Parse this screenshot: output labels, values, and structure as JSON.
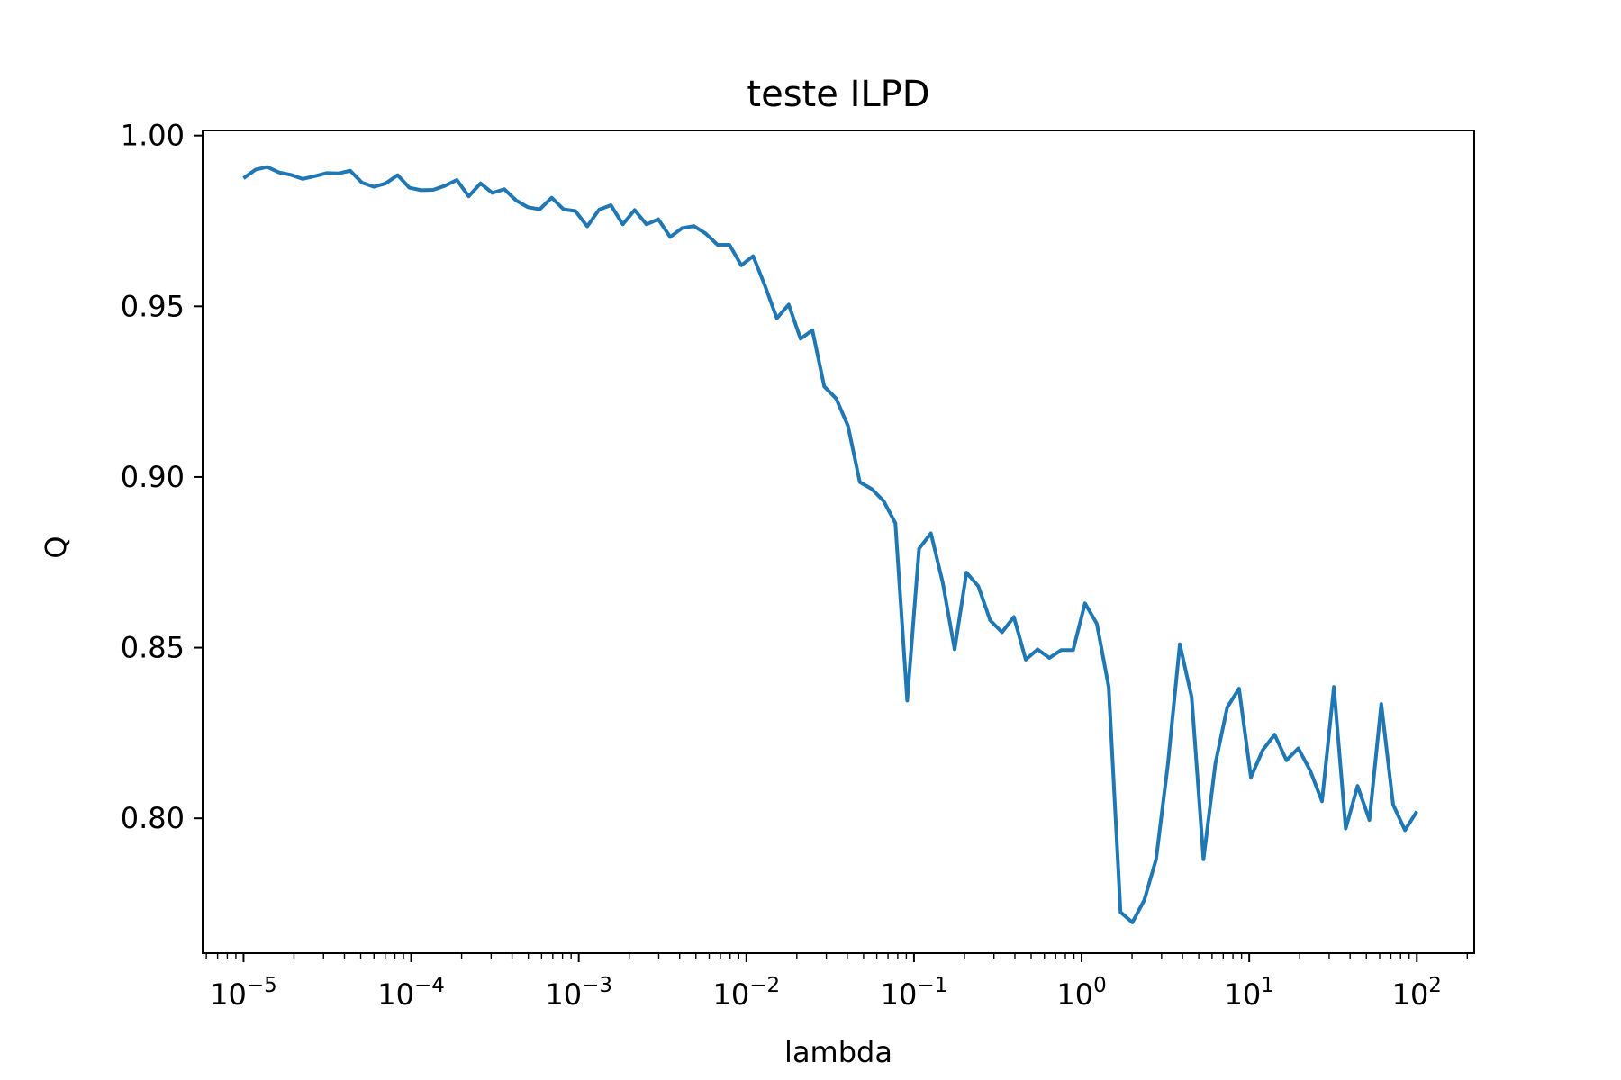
{
  "chart_data": {
    "type": "line",
    "title": "teste ILPD",
    "xlabel": "lambda",
    "ylabel": "Q",
    "xscale": "log",
    "xlim": [
      5.7e-06,
      220
    ],
    "ylim": [
      0.7605,
      1.0015
    ],
    "grid": false,
    "x_ticks": [
      {
        "value": 1e-05,
        "base": "10",
        "exp": "−5"
      },
      {
        "value": 0.0001,
        "base": "10",
        "exp": "−4"
      },
      {
        "value": 0.001,
        "base": "10",
        "exp": "−3"
      },
      {
        "value": 0.01,
        "base": "10",
        "exp": "−2"
      },
      {
        "value": 0.1,
        "base": "10",
        "exp": "−1"
      },
      {
        "value": 1,
        "base": "10",
        "exp": "0"
      },
      {
        "value": 10,
        "base": "10",
        "exp": "1"
      },
      {
        "value": 100,
        "base": "10",
        "exp": "2"
      }
    ],
    "y_ticks": [
      {
        "value": 0.8,
        "label": "0.80"
      },
      {
        "value": 0.85,
        "label": "0.85"
      },
      {
        "value": 0.9,
        "label": "0.90"
      },
      {
        "value": 0.95,
        "label": "0.95"
      },
      {
        "value": 1.0,
        "label": "1.00"
      }
    ],
    "series": [
      {
        "color": "#1f77b4",
        "x_log10_start": -5,
        "x_log10_end": 2,
        "values": [
          0.9875,
          0.99,
          0.9908,
          0.9892,
          0.9885,
          0.9873,
          0.9881,
          0.989,
          0.9889,
          0.9897,
          0.9862,
          0.985,
          0.986,
          0.9884,
          0.9847,
          0.984,
          0.9841,
          0.9853,
          0.987,
          0.9822,
          0.986,
          0.9832,
          0.9843,
          0.981,
          0.979,
          0.9784,
          0.9818,
          0.9784,
          0.9779,
          0.9734,
          0.9783,
          0.9796,
          0.974,
          0.9782,
          0.974,
          0.9755,
          0.9703,
          0.9729,
          0.9735,
          0.9713,
          0.968,
          0.968,
          0.962,
          0.9647,
          0.956,
          0.9465,
          0.9505,
          0.9405,
          0.943,
          0.9265,
          0.923,
          0.915,
          0.8985,
          0.8965,
          0.893,
          0.8865,
          0.8345,
          0.879,
          0.8835,
          0.869,
          0.8495,
          0.872,
          0.868,
          0.858,
          0.8545,
          0.859,
          0.8465,
          0.8495,
          0.847,
          0.8493,
          0.8493,
          0.863,
          0.857,
          0.8385,
          0.7725,
          0.7695,
          0.776,
          0.788,
          0.816,
          0.851,
          0.8355,
          0.788,
          0.816,
          0.8325,
          0.838,
          0.812,
          0.82,
          0.8245,
          0.817,
          0.8205,
          0.814,
          0.805,
          0.8385,
          0.797,
          0.8095,
          0.7995,
          0.8335,
          0.804,
          0.7965,
          0.802
        ]
      }
    ]
  }
}
